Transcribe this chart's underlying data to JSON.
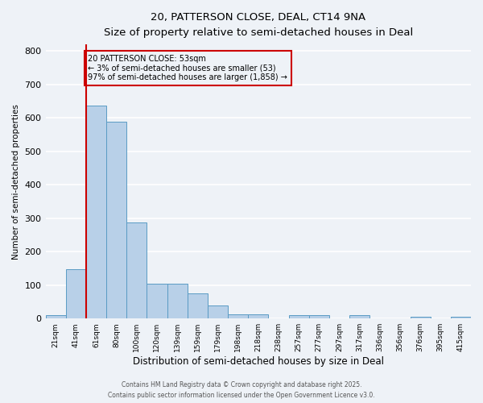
{
  "title1": "20, PATTERSON CLOSE, DEAL, CT14 9NA",
  "title2": "Size of property relative to semi-detached houses in Deal",
  "xlabel": "Distribution of semi-detached houses by size in Deal",
  "ylabel": "Number of semi-detached properties",
  "bin_labels": [
    "21sqm",
    "41sqm",
    "61sqm",
    "80sqm",
    "100sqm",
    "120sqm",
    "139sqm",
    "159sqm",
    "179sqm",
    "198sqm",
    "218sqm",
    "238sqm",
    "257sqm",
    "277sqm",
    "297sqm",
    "317sqm",
    "336sqm",
    "356sqm",
    "376sqm",
    "395sqm",
    "415sqm"
  ],
  "bar_heights": [
    10,
    148,
    638,
    590,
    288,
    105,
    105,
    75,
    38,
    13,
    13,
    0,
    10,
    10,
    0,
    10,
    0,
    0,
    5,
    0,
    5
  ],
  "bar_color": "#b8d0e8",
  "bar_edge_color": "#5a9bc4",
  "vline_color": "#cc0000",
  "annotation_title": "20 PATTERSON CLOSE: 53sqm",
  "annotation_line1": "← 3% of semi-detached houses are smaller (53)",
  "annotation_line2": "97% of semi-detached houses are larger (1,858) →",
  "annotation_box_color": "#cc0000",
  "ylim": [
    0,
    820
  ],
  "yticks": [
    0,
    100,
    200,
    300,
    400,
    500,
    600,
    700,
    800
  ],
  "background_color": "#eef2f7",
  "grid_color": "#ffffff",
  "footer1": "Contains HM Land Registry data © Crown copyright and database right 2025.",
  "footer2": "Contains public sector information licensed under the Open Government Licence v3.0."
}
